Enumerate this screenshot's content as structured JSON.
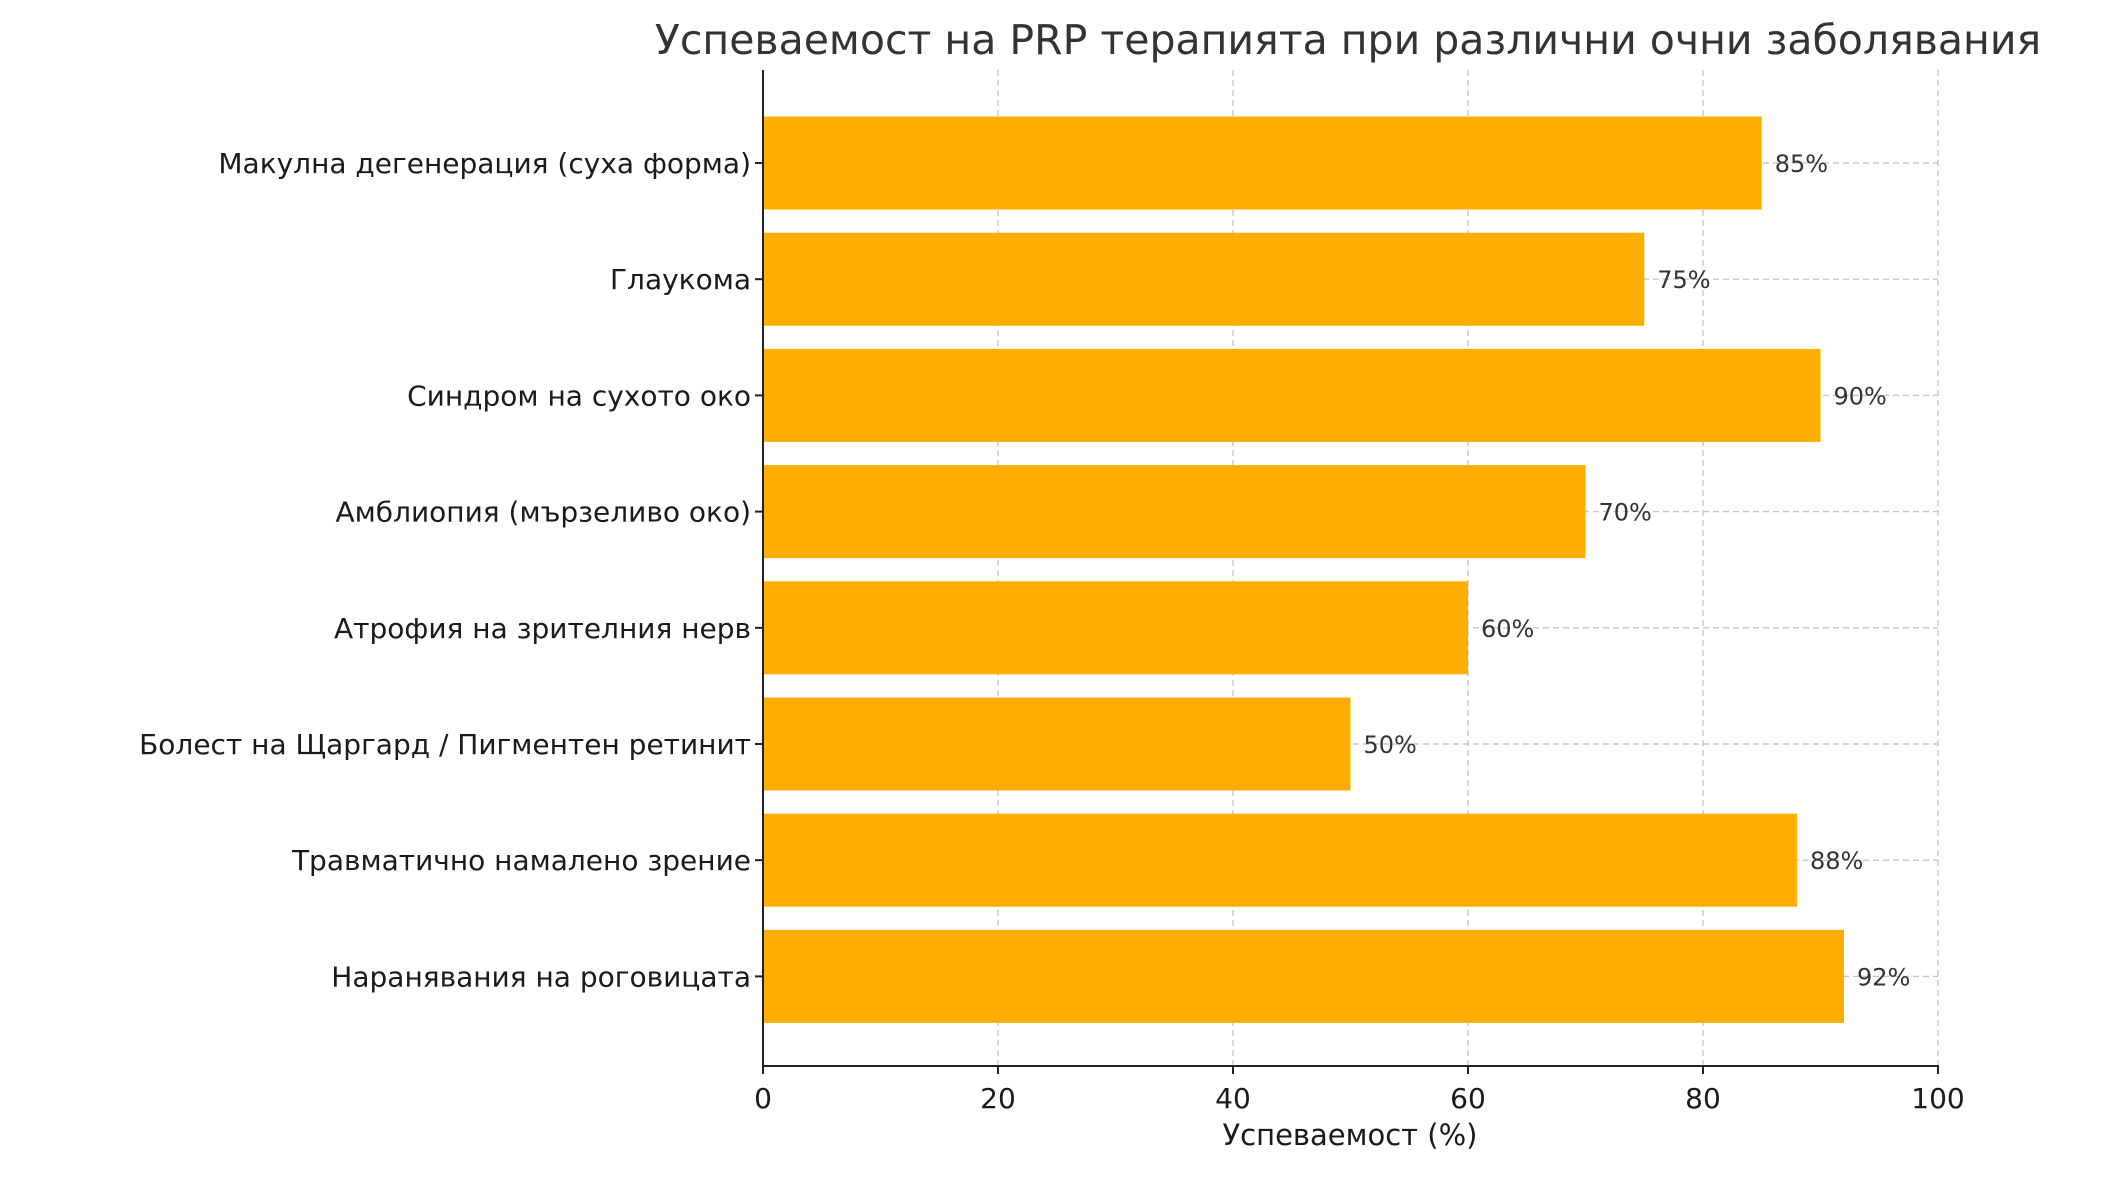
{
  "chart_data": {
    "type": "bar",
    "orientation": "horizontal",
    "title": "Успеваемост на PRP терапията при различни очни заболявания",
    "xlabel": "Успеваемост (%)",
    "ylabel": "",
    "xlim": [
      0,
      100
    ],
    "xticks": [
      "0",
      "20",
      "40",
      "60",
      "80",
      "100"
    ],
    "grid": true,
    "bar_color": "#FFAE00",
    "categories": [
      "Макулна дегенерация (суха форма)",
      "Глаукома",
      "Синдром на сухото око",
      "Амблиопия (мързеливо око)",
      "Атрофия на зрителния нерв",
      "Болест на Щаргард / Пигментен ретинит",
      "Травматично намалено зрение",
      "Наранявания на роговицата"
    ],
    "values": [
      85,
      75,
      90,
      70,
      60,
      50,
      88,
      92
    ],
    "value_labels": [
      "85%",
      "75%",
      "90%",
      "70%",
      "60%",
      "50%",
      "88%",
      "92%"
    ]
  }
}
